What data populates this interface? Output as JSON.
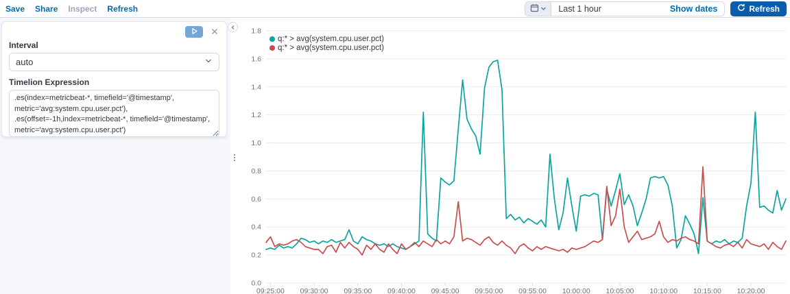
{
  "toolbar": {
    "save": "Save",
    "share": "Share",
    "inspect": "Inspect",
    "refresh": "Refresh"
  },
  "timepicker": {
    "duration": "Last 1 hour",
    "show_dates_label": "Show dates",
    "refresh_label": "Refresh"
  },
  "editor": {
    "interval_label": "Interval",
    "interval_value": "auto",
    "expression_label": "Timelion Expression",
    "expression": ".es(index=metricbeat-*, timefield='@timestamp',\nmetric='avg:system.cpu.user.pct'),\n.es(offset=-1h,index=metricbeat-*, timefield='@timestamp',\nmetric='avg:system.cpu.user.pct')"
  },
  "icons": {
    "quick_select_button": "calendar-icon + chevron-down-icon",
    "refresh_button": "refresh-circular-arrow-icon",
    "run_button": "play-icon",
    "close_button": "cross-icon",
    "panel_collapse_button": "chevron-left-icon",
    "resize_handle": "vertical-grab-dots-icon",
    "interval_select": "chevron-down-icon"
  },
  "colors": {
    "link_blue": "#006bb4",
    "refresh_button_fill": "#0b5cab",
    "series_teal": "#0aa39e",
    "series_red": "#c94c4c",
    "grid": "#e8ebf0",
    "axis_text": "#69707d",
    "panel_border": "#d3dae6"
  },
  "chart_data": {
    "type": "line",
    "title": "",
    "xlabel": "",
    "ylabel": "",
    "ylim": [
      0,
      1.8
    ],
    "grid": "horizontal",
    "legend_position": "top-left",
    "y_ticks": [
      "0.0",
      "0.2",
      "0.4",
      "0.6",
      "0.8",
      "1.0",
      "1.2",
      "1.4",
      "1.6",
      "1.8"
    ],
    "x_ticks": [
      "09:25:00",
      "09:30:00",
      "09:35:00",
      "09:40:00",
      "09:45:00",
      "09:50:00",
      "09:55:00",
      "10:00:00",
      "10:05:00",
      "10:10:00",
      "10:15:00",
      "10:20:00"
    ],
    "x_start": "09:24:30",
    "x_step_seconds": 30,
    "series": [
      {
        "name": "q:* > avg(system.cpu.user.pct)",
        "color": "#0aa39e",
        "values": [
          0.24,
          0.25,
          0.24,
          0.27,
          0.25,
          0.26,
          0.25,
          0.28,
          0.32,
          0.31,
          0.29,
          0.3,
          0.28,
          0.3,
          0.29,
          0.31,
          0.29,
          0.3,
          0.31,
          0.38,
          0.3,
          0.28,
          0.33,
          0.31,
          0.3,
          0.28,
          0.27,
          0.28,
          0.26,
          0.28,
          0.26,
          0.25,
          0.24,
          0.26,
          0.28,
          0.3,
          1.22,
          0.35,
          0.32,
          0.3,
          0.75,
          0.72,
          0.7,
          0.73,
          1.1,
          1.45,
          1.17,
          1.1,
          1.05,
          0.92,
          1.39,
          1.54,
          1.58,
          1.59,
          1.38,
          0.46,
          0.49,
          0.45,
          0.47,
          0.43,
          0.46,
          0.44,
          0.42,
          0.45,
          0.4,
          0.92,
          0.6,
          0.38,
          0.5,
          0.75,
          0.55,
          0.37,
          0.62,
          0.63,
          0.62,
          0.64,
          0.63,
          0.31,
          0.67,
          0.55,
          0.66,
          0.78,
          0.56,
          0.63,
          0.55,
          0.41,
          0.5,
          0.6,
          0.75,
          0.76,
          0.75,
          0.76,
          0.7,
          0.55,
          0.25,
          0.31,
          0.48,
          0.42,
          0.35,
          0.21,
          0.61,
          0.3,
          0.28,
          0.3,
          0.29,
          0.31,
          0.28,
          0.3,
          0.29,
          0.32,
          0.55,
          0.71,
          1.22,
          0.54,
          0.55,
          0.52,
          0.5,
          0.66,
          0.52,
          0.6
        ]
      },
      {
        "name": "q:* > avg(system.cpu.user.pct)",
        "color": "#c94c4c",
        "values": [
          0.29,
          0.33,
          0.26,
          0.28,
          0.27,
          0.28,
          0.3,
          0.31,
          0.29,
          0.26,
          0.25,
          0.24,
          0.24,
          0.21,
          0.26,
          0.27,
          0.22,
          0.29,
          0.25,
          0.29,
          0.26,
          0.24,
          0.2,
          0.27,
          0.24,
          0.28,
          0.24,
          0.22,
          0.28,
          0.24,
          0.21,
          0.28,
          0.24,
          0.26,
          0.29,
          0.26,
          0.3,
          0.28,
          0.26,
          0.31,
          0.28,
          0.3,
          0.28,
          0.33,
          0.58,
          0.3,
          0.32,
          0.31,
          0.29,
          0.27,
          0.31,
          0.33,
          0.29,
          0.27,
          0.3,
          0.27,
          0.25,
          0.21,
          0.26,
          0.28,
          0.25,
          0.23,
          0.26,
          0.24,
          0.26,
          0.25,
          0.24,
          0.23,
          0.24,
          0.22,
          0.25,
          0.24,
          0.25,
          0.26,
          0.28,
          0.3,
          0.29,
          0.31,
          0.69,
          0.41,
          0.48,
          0.67,
          0.4,
          0.29,
          0.33,
          0.37,
          0.31,
          0.32,
          0.33,
          0.35,
          0.44,
          0.33,
          0.29,
          0.31,
          0.3,
          0.32,
          0.33,
          0.31,
          0.3,
          0.28,
          0.83,
          0.3,
          0.28,
          0.26,
          0.25,
          0.27,
          0.28,
          0.26,
          0.29,
          0.25,
          0.31,
          0.28,
          0.27,
          0.26,
          0.28,
          0.24,
          0.29,
          0.26,
          0.24,
          0.3
        ]
      }
    ]
  }
}
